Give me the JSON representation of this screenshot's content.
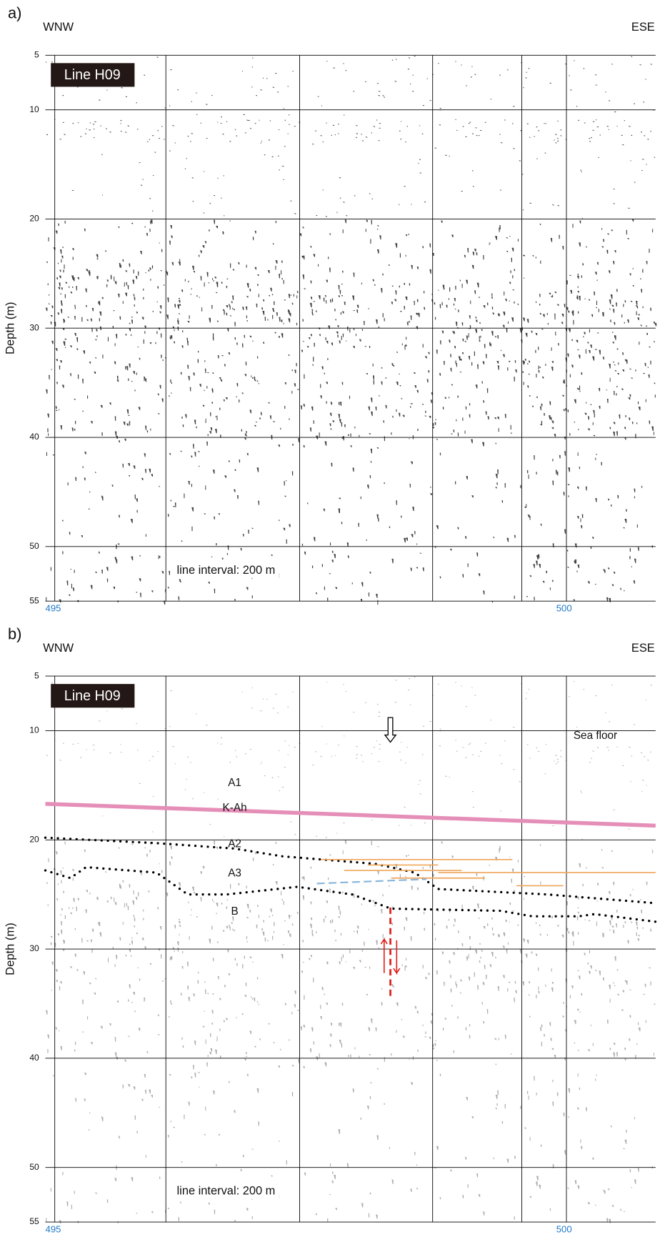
{
  "chart_data": [
    {
      "type": "seismic",
      "panel_label": "a)",
      "left_direction": "WNW",
      "right_direction": "ESE",
      "line_name": "Line H09",
      "y_label": "Depth (m)",
      "ylim": [
        5,
        55
      ],
      "y_inverted": true,
      "yticks": [
        5,
        10,
        20,
        30,
        40,
        50,
        55
      ],
      "x_labels": [
        "495",
        "500"
      ],
      "note": "line interval: 200 m"
    },
    {
      "type": "seismic",
      "panel_label": "b)",
      "left_direction": "WNW",
      "right_direction": "ESE",
      "line_name": "Line H09",
      "y_label": "Depth (m)",
      "ylim": [
        5,
        55
      ],
      "y_inverted": true,
      "yticks": [
        5,
        10,
        20,
        30,
        40,
        50,
        55
      ],
      "x_labels": [
        "495",
        "500"
      ],
      "note": "line interval: 200 m",
      "annotations": [
        "Sea floor",
        "A1",
        "K-Ah",
        "A2",
        "A3",
        "B"
      ]
    }
  ]
}
